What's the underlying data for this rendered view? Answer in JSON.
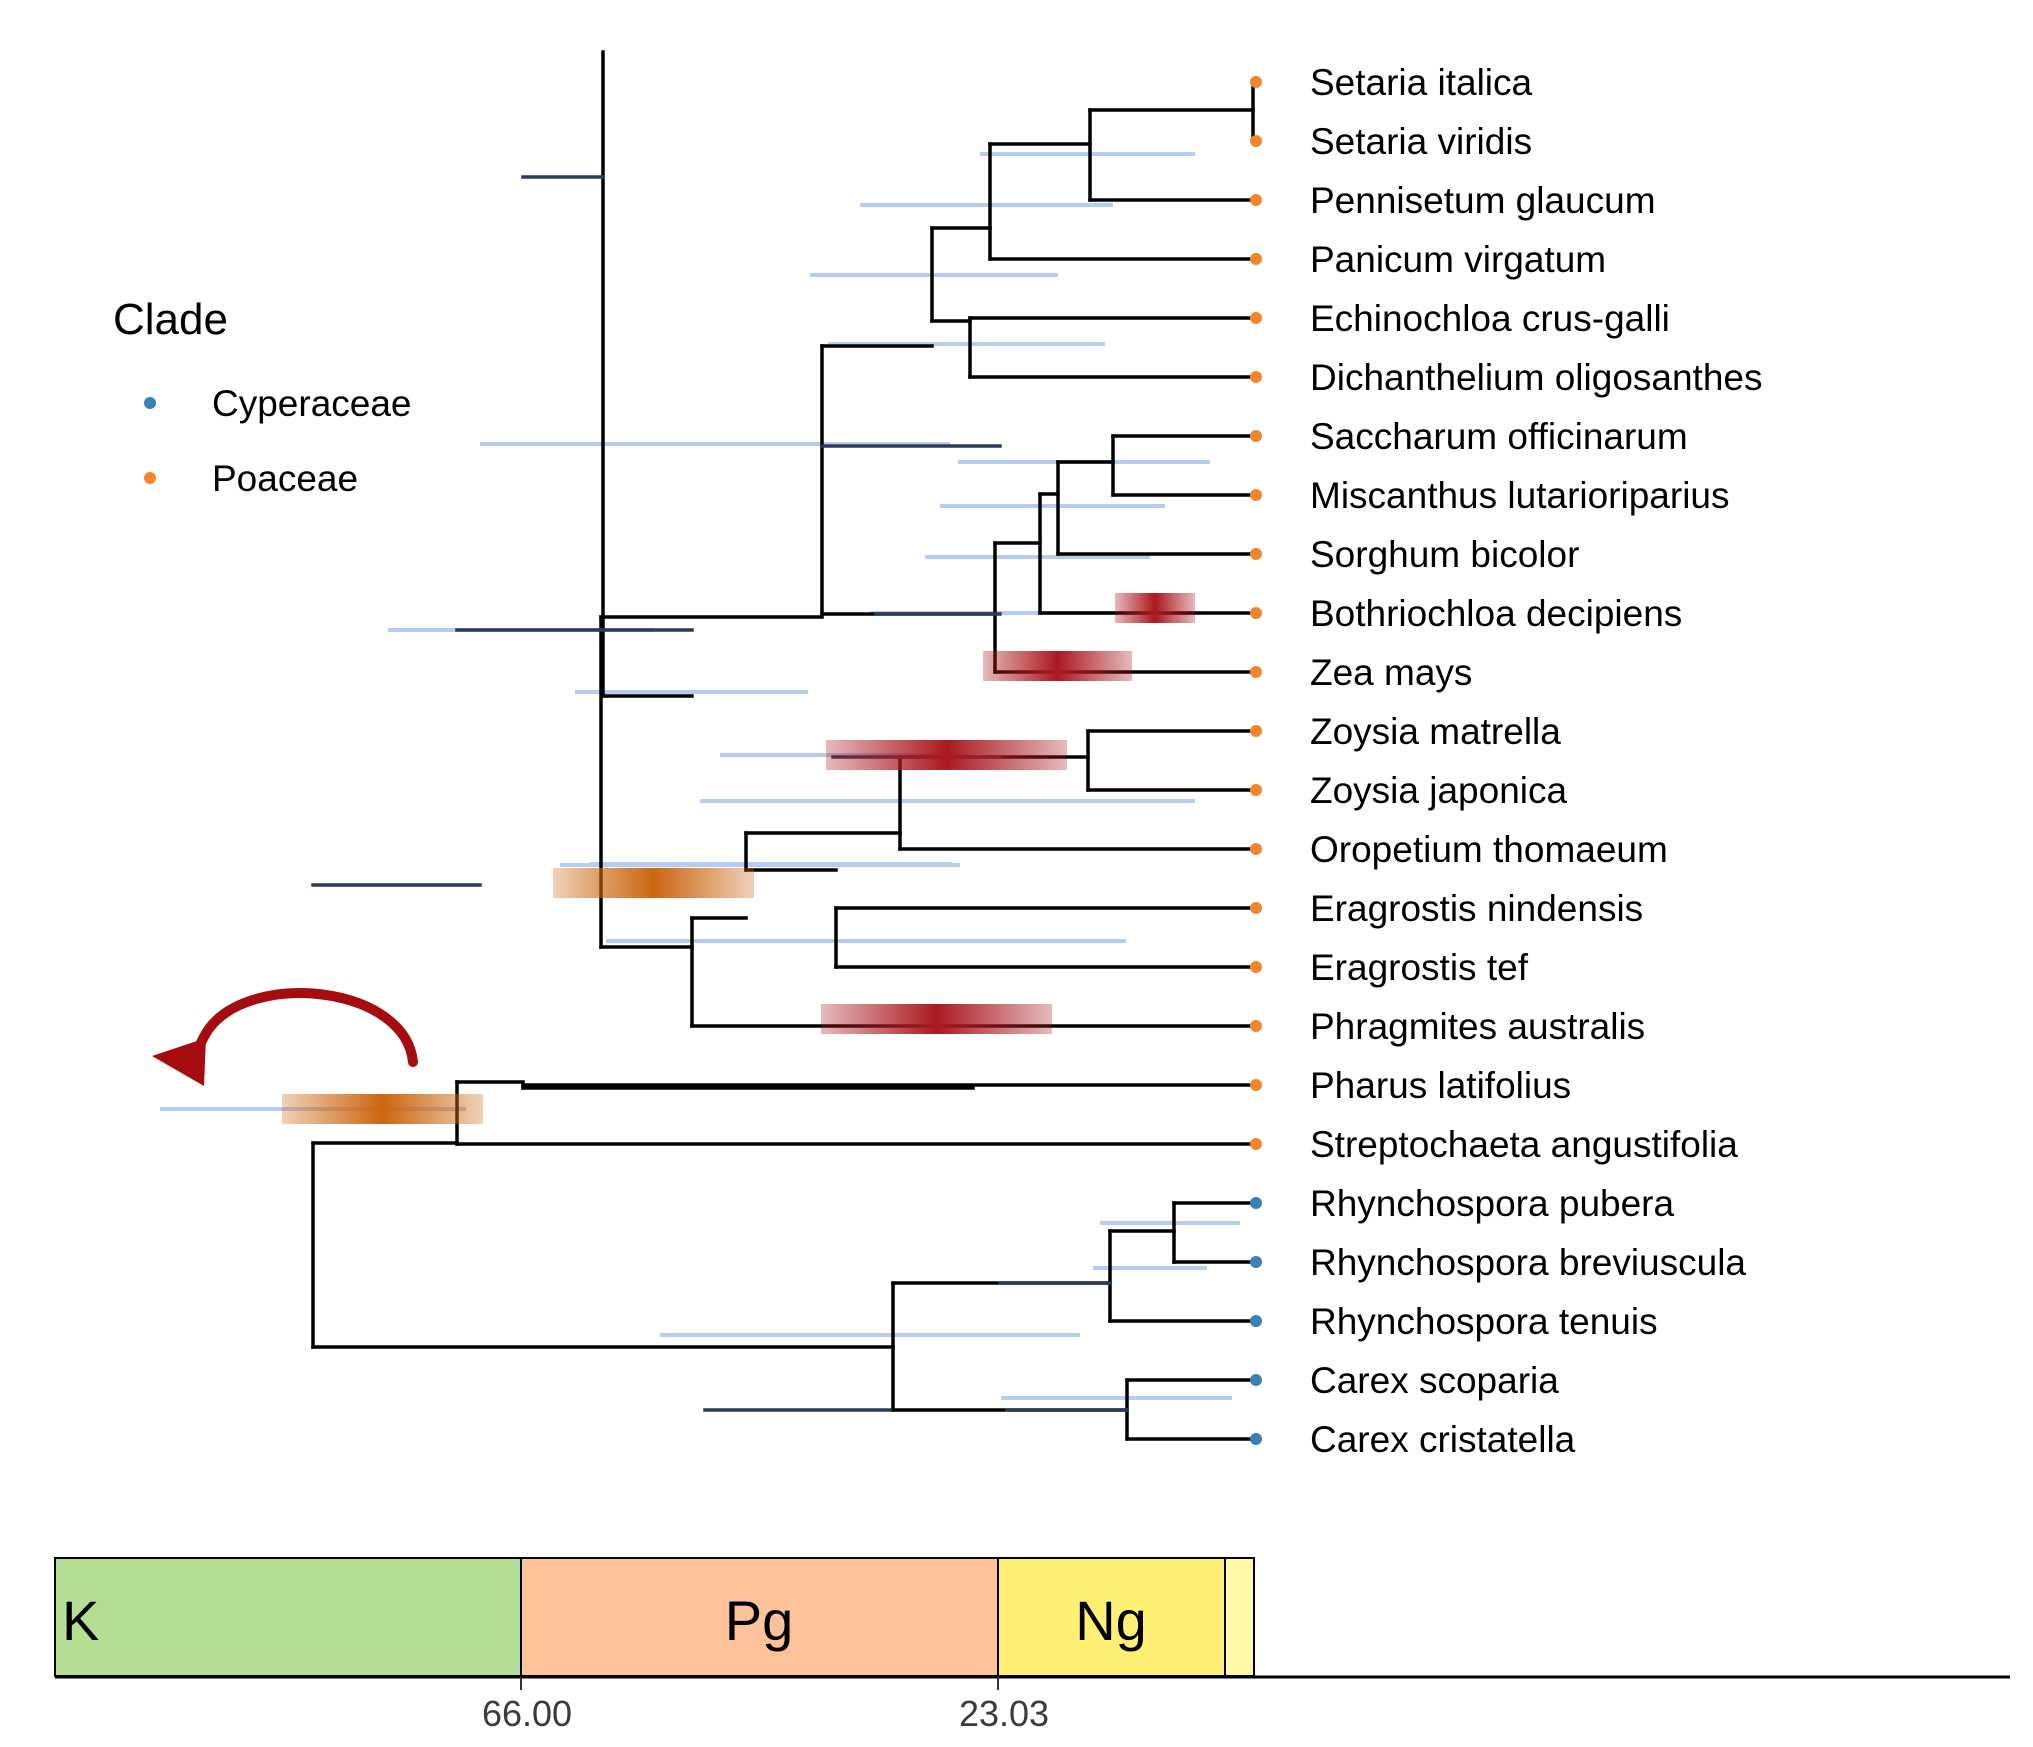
{
  "legend": {
    "title": "Clade",
    "items": [
      {
        "label": "Cyperaceae",
        "color": "#3a7fb5"
      },
      {
        "label": "Poaceae",
        "color": "#f2862d"
      }
    ]
  },
  "tips": [
    {
      "label": "Setaria italica",
      "clade": "Poaceae"
    },
    {
      "label": "Setaria viridis",
      "clade": "Poaceae"
    },
    {
      "label": "Pennisetum glaucum",
      "clade": "Poaceae"
    },
    {
      "label": "Panicum virgatum",
      "clade": "Poaceae"
    },
    {
      "label": "Echinochloa crus-galli",
      "clade": "Poaceae"
    },
    {
      "label": "Dichanthelium oligosanthes",
      "clade": "Poaceae"
    },
    {
      "label": "Saccharum officinarum",
      "clade": "Poaceae"
    },
    {
      "label": "Miscanthus lutarioriparius",
      "clade": "Poaceae"
    },
    {
      "label": "Sorghum bicolor",
      "clade": "Poaceae"
    },
    {
      "label": "Bothriochloa decipiens",
      "clade": "Poaceae"
    },
    {
      "label": "Zea mays",
      "clade": "Poaceae"
    },
    {
      "label": "Zoysia matrella",
      "clade": "Poaceae"
    },
    {
      "label": "Zoysia japonica",
      "clade": "Poaceae"
    },
    {
      "label": "Oropetium thomaeum",
      "clade": "Poaceae"
    },
    {
      "label": "Eragrostis nindensis",
      "clade": "Poaceae"
    },
    {
      "label": "Eragrostis tef",
      "clade": "Poaceae"
    },
    {
      "label": "Phragmites australis",
      "clade": "Poaceae"
    },
    {
      "label": "Pharus latifolius",
      "clade": "Poaceae"
    },
    {
      "label": "Streptochaeta angustifolia",
      "clade": "Poaceae"
    },
    {
      "label": "Rhynchospora pubera",
      "clade": "Cyperaceae"
    },
    {
      "label": "Rhynchospora breviuscula",
      "clade": "Cyperaceae"
    },
    {
      "label": "Rhynchospora tenuis",
      "clade": "Cyperaceae"
    },
    {
      "label": "Carex scoparia",
      "clade": "Cyperaceae"
    },
    {
      "label": "Carex cristatella",
      "clade": "Cyperaceae"
    }
  ],
  "timescale": {
    "periods": [
      {
        "label": "K",
        "color": "#b3de93"
      },
      {
        "label": "Pg",
        "color": "#fdc29a"
      },
      {
        "label": "Ng",
        "color": "#fff075"
      },
      {
        "label": "",
        "color": "#fff9a8"
      }
    ],
    "ticks": [
      "66.00",
      "23.03"
    ]
  },
  "colors": {
    "branch": "#000000",
    "branch_dark": "#2b3a5c",
    "confidence_interval": "#b8cbf0",
    "wgd_red": "#aa1a20",
    "wgd_orange": "#cc6610",
    "arrow": "#a40c10"
  }
}
